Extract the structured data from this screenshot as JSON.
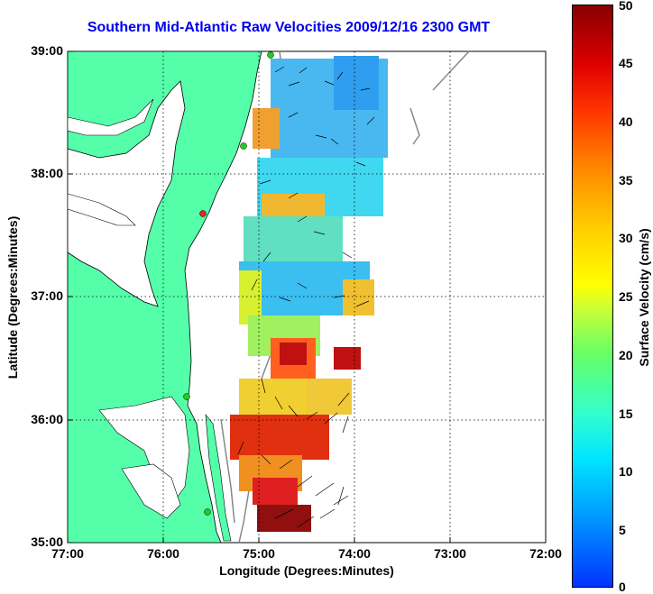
{
  "title": "Southern Mid-Atlantic Raw Velocities 2009/12/16 2300 GMT",
  "xlabel": "Longitude (Degrees:Minutes)",
  "ylabel": "Latitude (Degrees:Minutes)",
  "colorbar": {
    "label": "Surface Velocity (cm/s)",
    "ticks": [
      "50",
      "45",
      "40",
      "35",
      "30",
      "25",
      "20",
      "15",
      "10",
      "5",
      "0"
    ],
    "range": [
      0,
      50
    ]
  },
  "xticks": [
    "77:00",
    "76:00",
    "75:00",
    "74:00",
    "73:00",
    "72:00"
  ],
  "yticks": [
    "39:00",
    "38:00",
    "37:00",
    "36:00",
    "35:00"
  ],
  "colors": {
    "title": "#0000ee",
    "land": "#55ffaa",
    "coastline": "#000000",
    "bathymetry": "#888888",
    "stations": "#22cc22",
    "station_alert": "#ee2222"
  }
}
